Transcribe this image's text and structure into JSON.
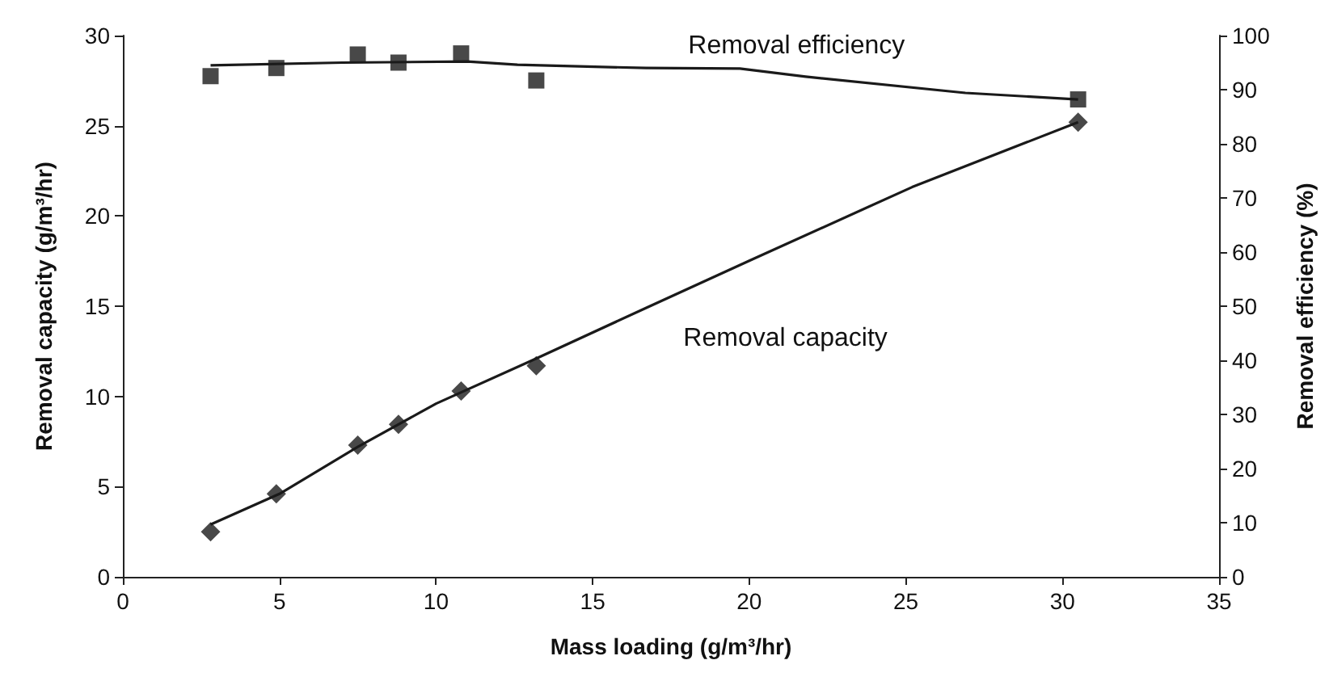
{
  "chart_data": {
    "type": "scatter",
    "xlabel": "Mass loading (g/m³/hr)",
    "ylabel": "Removal capacity (g/m³/hr)",
    "y2label": "Removal efficiency (%)",
    "xlim": [
      0,
      35
    ],
    "xticks": [
      0,
      5,
      10,
      15,
      20,
      25,
      30,
      35
    ],
    "ylim": [
      0,
      30
    ],
    "yticks": [
      0,
      5,
      10,
      15,
      20,
      25,
      30
    ],
    "y2lim": [
      0,
      100
    ],
    "y2ticks": [
      0,
      10,
      20,
      30,
      40,
      50,
      60,
      70,
      80,
      90,
      100
    ],
    "grid": false,
    "annotations": [
      "Removal efficiency",
      "Removal capacity"
    ],
    "series": [
      {
        "marker": "square",
        "axis": "y2",
        "color": "#1a1a1a",
        "x": [
          2.8,
          4.9,
          7.5,
          8.8,
          10.8,
          13.2,
          30.5
        ],
        "values": [
          92.5,
          94.0,
          96.5,
          95.0,
          96.7,
          91.7,
          88.2
        ]
      },
      {
        "marker": "diamond",
        "color": "#1a1a1a",
        "x": [
          2.8,
          4.9,
          7.5,
          8.8,
          10.8,
          13.2,
          30.5
        ],
        "values": [
          2.5,
          4.6,
          7.3,
          8.45,
          10.3,
          11.7,
          25.2
        ]
      },
      {
        "type": "line",
        "marker": "none",
        "axis": "y2",
        "color": "#1a1a1a",
        "x": [
          2.8,
          7,
          11,
          12.6,
          16.7,
          19.7,
          21.8,
          26.9,
          30.5
        ],
        "values": [
          94.5,
          95,
          95.2,
          94.6,
          94.0,
          93.9,
          92.4,
          89.4,
          88.2
        ]
      },
      {
        "type": "line",
        "marker": "none",
        "color": "#1a1a1a",
        "x": [
          2.8,
          5,
          7.5,
          10,
          13.2,
          16.7,
          20.1,
          25.2,
          30.5
        ],
        "values": [
          2.9,
          4.6,
          7.2,
          9.6,
          12.1,
          14.9,
          17.6,
          21.6,
          25.2
        ]
      }
    ]
  }
}
